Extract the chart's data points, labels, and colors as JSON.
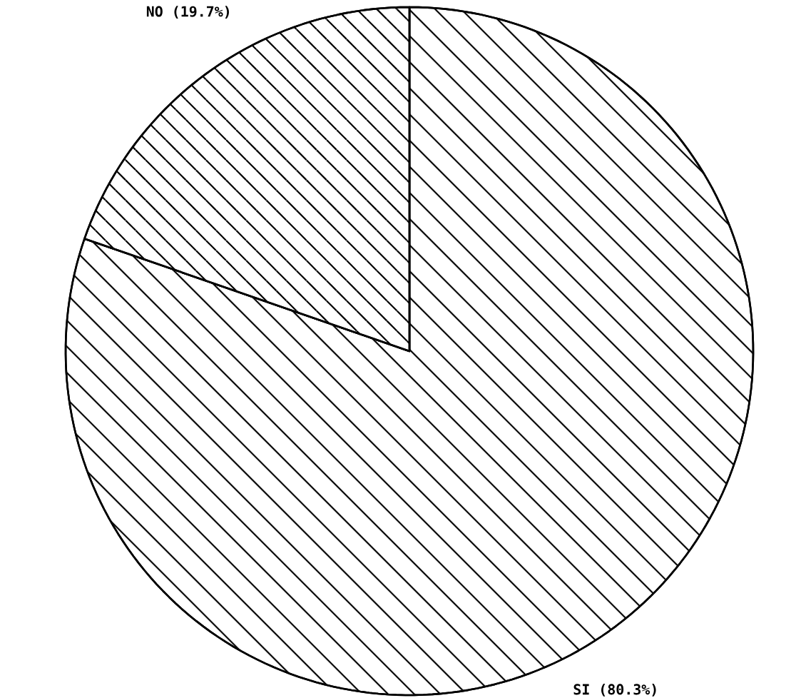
{
  "chart_data": {
    "type": "pie",
    "categories": [
      "SI",
      "NO"
    ],
    "values": [
      80.3,
      19.7
    ],
    "colors": [
      "#000000",
      "#000000"
    ],
    "value_labels": [
      "(80.3%)",
      "(19.7%)"
    ]
  }
}
